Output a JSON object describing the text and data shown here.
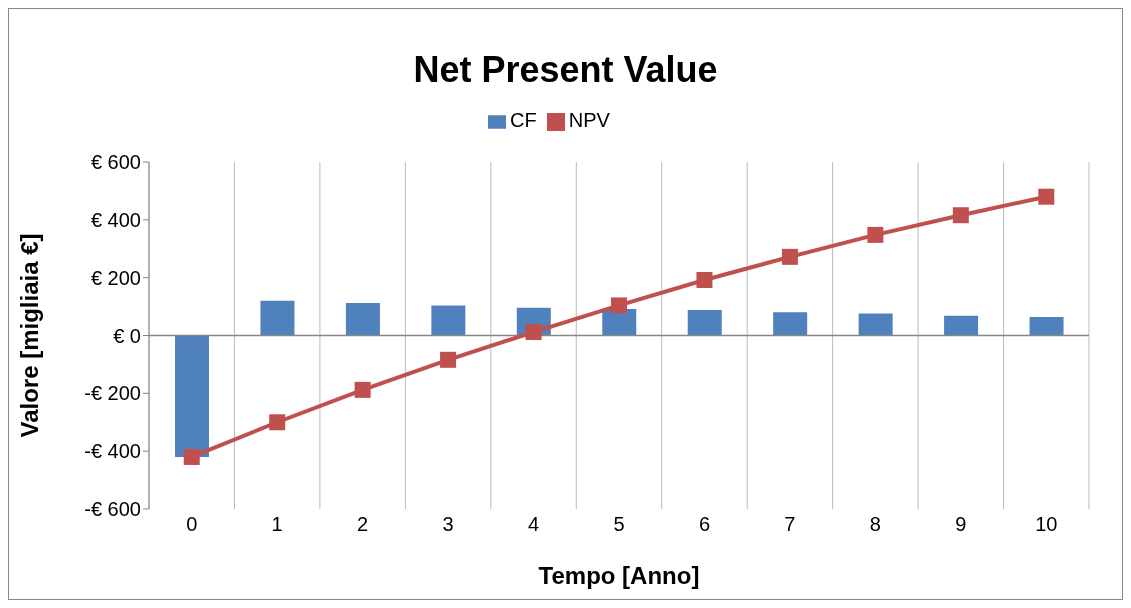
{
  "chart_data": {
    "type": "bar",
    "title": "Net Present Value",
    "xlabel": "Tempo [Anno]",
    "ylabel": "Valore [migliaia €]",
    "categories": [
      "0",
      "1",
      "2",
      "3",
      "4",
      "5",
      "6",
      "7",
      "8",
      "9",
      "10"
    ],
    "series": [
      {
        "name": "CF",
        "color": "#4f81bd",
        "values": [
          -420,
          120,
          112,
          104,
          96,
          92,
          88,
          80,
          76,
          68,
          64
        ]
      },
      {
        "name": "NPV",
        "type": "line",
        "color": "#c0504d",
        "marker": "square",
        "values": [
          -420,
          -300,
          -188,
          -84,
          12,
          104,
          192,
          272,
          348,
          416,
          480
        ]
      }
    ],
    "ylim": [
      -600,
      600
    ],
    "yticks": [
      {
        "value": -600,
        "label": "-€ 600"
      },
      {
        "value": -400,
        "label": "-€ 400"
      },
      {
        "value": -200,
        "label": "-€ 200"
      },
      {
        "value": 0,
        "label": "€ 0"
      },
      {
        "value": 200,
        "label": "€ 200"
      },
      {
        "value": 400,
        "label": "€ 400"
      },
      {
        "value": 600,
        "label": "€ 600"
      }
    ],
    "ref_lines": [
      {
        "axis": "y",
        "value": 0,
        "color": "#868686"
      }
    ],
    "grid": "x",
    "legend": "top"
  }
}
